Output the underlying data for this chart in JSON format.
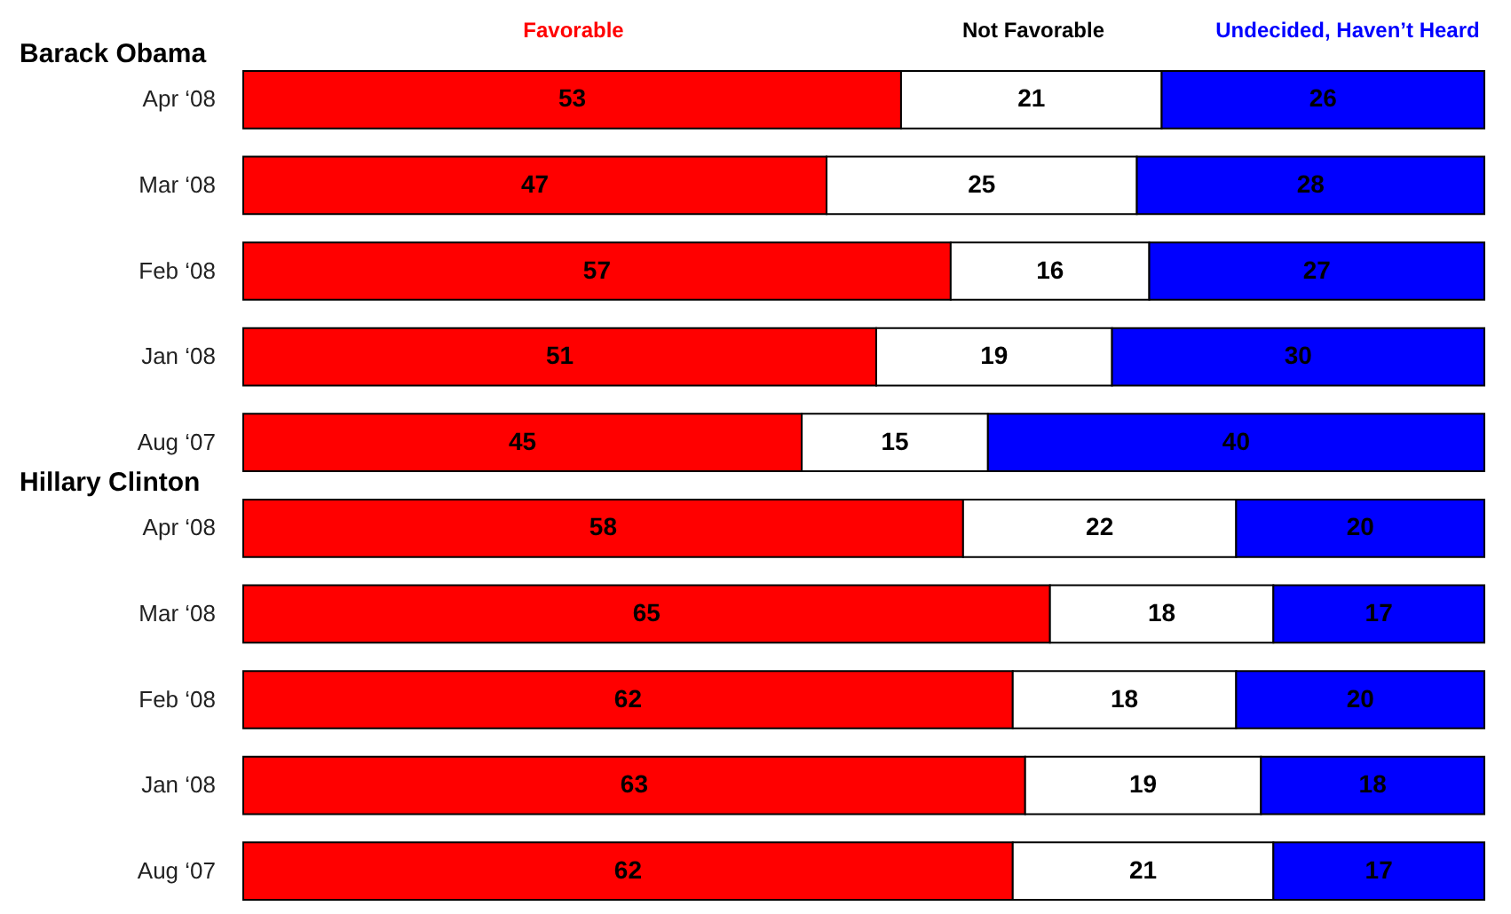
{
  "chart_data": {
    "type": "bar",
    "orientation": "horizontal",
    "stacked": true,
    "data_labels": true,
    "legend": "top",
    "tick_labels": "y",
    "categories": [
      "Apr ‘08",
      "Mar ‘08",
      "Feb ‘08",
      "Jan ‘08",
      "Aug ‘07",
      "Apr ‘08",
      "Mar ‘08",
      "Feb ‘08",
      "Jan ‘08",
      "Aug ‘07"
    ],
    "xlim": [
      0,
      100
    ],
    "series": [
      {
        "name": "Favorable",
        "color": "#ff0000",
        "values": [
          53,
          47,
          57,
          51,
          45,
          58,
          65,
          62,
          63,
          62
        ]
      },
      {
        "name": "Not Favorable",
        "color": "#ffffff",
        "values": [
          21,
          25,
          16,
          19,
          15,
          22,
          18,
          18,
          19,
          21
        ]
      },
      {
        "name": "Undecided, Haven’t Heard",
        "color": "#0000ff",
        "values": [
          26,
          28,
          27,
          30,
          40,
          20,
          17,
          20,
          18,
          17
        ]
      }
    ],
    "annotations": [
      "Barack Obama",
      "Hillary Clinton"
    ]
  }
}
